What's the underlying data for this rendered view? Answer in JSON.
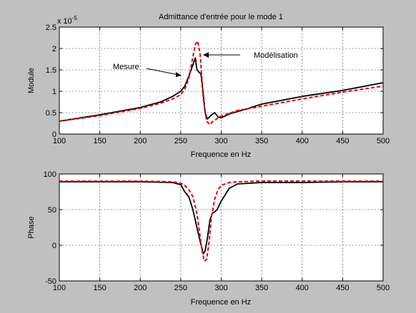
{
  "chart_data": [
    {
      "type": "line",
      "title": "Admittance d'entrée pour le mode 1",
      "xlabel": "Frequence en Hz",
      "ylabel": "Module",
      "y_exponent_label": "x 10",
      "y_exponent_power": "-5",
      "xlim": [
        100,
        500
      ],
      "ylim": [
        0,
        2.5
      ],
      "grid": true,
      "xticks": [
        "100",
        "150",
        "200",
        "250",
        "300",
        "350",
        "400",
        "450",
        "500"
      ],
      "yticks": [
        "0",
        "0.5",
        "1",
        "1.5",
        "2",
        "2.5"
      ],
      "annotations": [
        {
          "text": "Mesure",
          "series": "Mesure"
        },
        {
          "text": "Modélisation",
          "series": "Modélisation"
        }
      ],
      "series": [
        {
          "name": "Mesure",
          "color": "#000000",
          "style": "solid",
          "x": [
            100,
            150,
            200,
            225,
            240,
            250,
            255,
            260,
            265,
            268,
            270,
            275,
            278,
            280,
            283,
            288,
            292,
            296,
            300,
            310,
            330,
            350,
            400,
            450,
            500
          ],
          "y": [
            0.3,
            0.45,
            0.62,
            0.75,
            0.88,
            1.0,
            1.12,
            1.35,
            1.62,
            1.78,
            1.5,
            1.4,
            0.9,
            0.5,
            0.35,
            0.45,
            0.5,
            0.4,
            0.38,
            0.47,
            0.58,
            0.7,
            0.88,
            1.02,
            1.2
          ]
        },
        {
          "name": "Modélisation",
          "color": "#e00000",
          "style": "dashed",
          "x": [
            100,
            150,
            200,
            225,
            240,
            250,
            255,
            260,
            264,
            268,
            271,
            274,
            278,
            282,
            286,
            290,
            300,
            320,
            350,
            400,
            450,
            500
          ],
          "y": [
            0.3,
            0.43,
            0.6,
            0.72,
            0.82,
            0.92,
            1.05,
            1.3,
            1.7,
            2.1,
            2.17,
            1.85,
            0.8,
            0.3,
            0.22,
            0.3,
            0.42,
            0.55,
            0.65,
            0.82,
            0.98,
            1.12
          ]
        }
      ]
    },
    {
      "type": "line",
      "title": "",
      "xlabel": "Frequence en Hz",
      "ylabel": "Phase",
      "xlim": [
        100,
        500
      ],
      "ylim": [
        -50,
        100
      ],
      "grid": true,
      "xticks": [
        "100",
        "150",
        "200",
        "250",
        "300",
        "350",
        "400",
        "450",
        "500"
      ],
      "yticks": [
        "-50",
        "0",
        "50",
        "100"
      ],
      "series": [
        {
          "name": "Mesure",
          "color": "#000000",
          "style": "solid",
          "x": [
            100,
            150,
            200,
            240,
            250,
            255,
            260,
            265,
            270,
            274,
            278,
            280,
            283,
            286,
            289,
            292,
            295,
            300,
            310,
            320,
            350,
            400,
            450,
            500
          ],
          "y": [
            89,
            89,
            89,
            88,
            85,
            75,
            68,
            50,
            25,
            5,
            -12,
            -8,
            10,
            35,
            45,
            47,
            50,
            62,
            80,
            86,
            88,
            88,
            89,
            89
          ]
        },
        {
          "name": "Modélisation",
          "color": "#e00000",
          "style": "dashed",
          "x": [
            100,
            150,
            200,
            240,
            250,
            255,
            260,
            265,
            270,
            273,
            276,
            279,
            282,
            285,
            288,
            292,
            296,
            300,
            310,
            320,
            350,
            400,
            450,
            500
          ],
          "y": [
            90,
            90,
            90,
            89,
            87,
            84,
            78,
            68,
            45,
            20,
            -5,
            -22,
            -20,
            5,
            40,
            65,
            78,
            84,
            88,
            89,
            90,
            90,
            90,
            90
          ]
        }
      ]
    }
  ]
}
